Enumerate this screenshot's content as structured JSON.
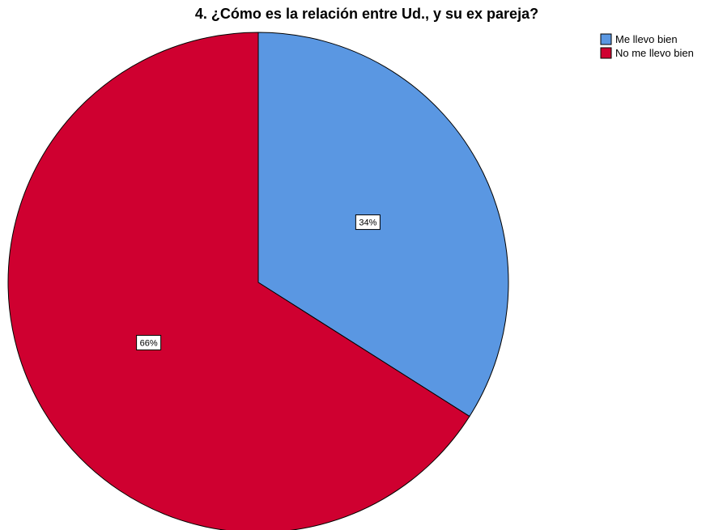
{
  "chart_data": {
    "type": "pie",
    "title": "4. ¿Cómo es la relación entre Ud., y su ex pareja?",
    "categories": [
      "Me llevo bien",
      "No me llevo bien"
    ],
    "values": [
      34,
      66
    ],
    "labels": [
      "34%",
      "66%"
    ],
    "colors": [
      "#5a97e2",
      "#cf0030"
    ],
    "legend_position": "top-right",
    "start_angle_deg": 0,
    "direction": "clockwise"
  }
}
